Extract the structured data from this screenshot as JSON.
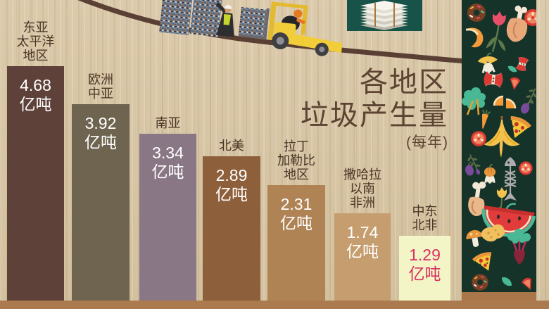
{
  "title": {
    "line1": "各地区",
    "line2": "垃圾产生量",
    "subtitle": "(每年)"
  },
  "chart_data": {
    "type": "bar",
    "title": "各地区垃圾产生量",
    "subtitle": "(每年)",
    "unit": "亿吨",
    "orientation": "vertical",
    "categories": [
      "东亚太平洋地区",
      "欧洲中亚",
      "南亚",
      "北美",
      "拉丁加勒比地区",
      "撒哈拉以南非洲",
      "中东北非"
    ],
    "category_label_lines": [
      [
        "东亚",
        "太平洋",
        "地区"
      ],
      [
        "欧洲",
        "中亚"
      ],
      [
        "南亚"
      ],
      [
        "北美"
      ],
      [
        "拉丁",
        "加勒比",
        "地区"
      ],
      [
        "撒哈拉",
        "以南",
        "非洲"
      ],
      [
        "中东",
        "北非"
      ]
    ],
    "values": [
      4.68,
      3.92,
      3.34,
      2.89,
      2.31,
      1.74,
      1.29
    ],
    "value_labels": [
      "4.68 亿吨",
      "3.92 亿吨",
      "3.34 亿吨",
      "2.89 亿吨",
      "2.31 亿吨",
      "1.74 亿吨",
      "1.29 亿吨"
    ],
    "bar_colors": [
      "#5e4139",
      "#6e644f",
      "#897785",
      "#8e5f3b",
      "#b08355",
      "#c69d6e",
      "#f3f5c6"
    ],
    "value_text_colors": [
      "#ffffff",
      "#ffffff",
      "#ffffff",
      "#ffffff",
      "#ffffff",
      "#ffffff",
      "#d92e63"
    ],
    "legend": "none",
    "grid": false,
    "axis_lines": "none"
  },
  "icons": {
    "top_illustration": [
      "slope-line",
      "garbage-pile-icon",
      "worker-icon",
      "forklift-icon",
      "garbage-bale-icon",
      "newspaper-stack-icon"
    ],
    "food_strip": [
      "donut-icon",
      "tulip-icon",
      "meat-bone-icon",
      "tomato-slice-icon",
      "orange-peel-icon",
      "squash-blossom-icon",
      "apple-core-icon",
      "apple-core-icon",
      "leaf-icon",
      "tomato-wedge-icon",
      "herb-sprig-icon",
      "kale-icon",
      "orange-segment-icon",
      "plum-icon",
      "carrot-icon",
      "pizza-slice-icon",
      "tomato-slice-icon",
      "banana-peel-icon",
      "herb-sprig-icon",
      "plum-icon",
      "fish-skeleton-icon",
      "tomato-slice-icon",
      "pepper-icon",
      "tulip-icon",
      "ham-bone-icon",
      "watermelon-icon",
      "mushroom-icon",
      "bread-chunk-icon",
      "beet-icon",
      "pizza-slice-icon",
      "donut-icon",
      "leaf-icon",
      "tomato-wedge-icon"
    ]
  },
  "colors": {
    "background": "#d9c8a9",
    "footer_bar": "#ab7a4e",
    "slope_line": "#5a4034",
    "title_text": "#5c4332",
    "label_text": "#4a3424",
    "newspaper_tile_bg": "#175348",
    "food_strip_bg": "#16332a",
    "forklift_yellow": "#f2cd3a",
    "safety_vest_green": "#c6d42f",
    "highlight_value_pink": "#d92e63"
  }
}
